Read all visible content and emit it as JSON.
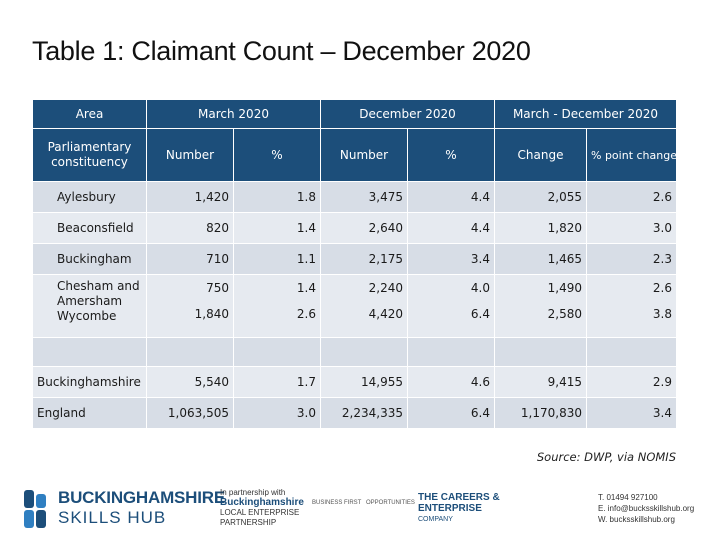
{
  "title": "Table 1: Claimant Count – December 2020",
  "table": {
    "group_headers": {
      "area": "Area",
      "march": "March 2020",
      "december": "December 2020",
      "change_period": "March - December 2020"
    },
    "sub_headers": {
      "constituency": "Parliamentary constituency",
      "march_number": "Number",
      "march_pct": "%",
      "dec_number": "Number",
      "dec_pct": "%",
      "change": "Change",
      "pp_change": "% point change"
    },
    "rows": [
      {
        "area": "Aylesbury",
        "mar_num": "1,420",
        "mar_pct": "1.8",
        "dec_num": "3,475",
        "dec_pct": "4.4",
        "change": "2,055",
        "pp": "2.6"
      },
      {
        "area": "Beaconsfield",
        "mar_num": "820",
        "mar_pct": "1.4",
        "dec_num": "2,640",
        "dec_pct": "4.4",
        "change": "1,820",
        "pp": "3.0"
      },
      {
        "area": "Buckingham",
        "mar_num": "710",
        "mar_pct": "1.1",
        "dec_num": "2,175",
        "dec_pct": "3.4",
        "change": "1,465",
        "pp": "2.3"
      },
      {
        "area": "Chesham and Amersham",
        "mar_num": "750",
        "mar_pct": "1.4",
        "dec_num": "2,240",
        "dec_pct": "4.0",
        "change": "1,490",
        "pp": "2.6"
      },
      {
        "area": "Wycombe",
        "mar_num": "1,840",
        "mar_pct": "2.6",
        "dec_num": "4,420",
        "dec_pct": "6.4",
        "change": "2,580",
        "pp": "3.8"
      },
      {
        "area": "Buckinghamshire",
        "mar_num": "5,540",
        "mar_pct": "1.7",
        "dec_num": "14,955",
        "dec_pct": "4.6",
        "change": "9,415",
        "pp": "2.9"
      },
      {
        "area": "England",
        "mar_num": "1,063,505",
        "mar_pct": "3.0",
        "dec_num": "2,234,335",
        "dec_pct": "6.4",
        "change": "1,170,830",
        "pp": "3.4"
      }
    ]
  },
  "source": "Source: DWP, via NOMIS",
  "footer": {
    "logo_line1": "BUCKINGHAMSHIRE",
    "logo_line2": "SKILLS HUB",
    "partner_intro": "In partnership with",
    "partner_name_1": "Buckinghamshire",
    "partner_name_2": "LOCAL ENTERPRISE",
    "partner_name_3": "PARTNERSHIP",
    "mini_logo_1": "BUSINESS FIRST",
    "mini_logo_2": "OPPORTUNITIES",
    "cec_1": "THE CAREERS &",
    "cec_2": "ENTERPRISE",
    "cec_3": "COMPANY",
    "phone": "T. 01494 927100",
    "email": "E. info@bucksskillshub.org",
    "web": "W. bucksskillshub.org"
  },
  "colors": {
    "header_bg": "#1c4e7a",
    "row_bg": "#d7dde6",
    "brand_blue": "#1c4e7a"
  }
}
